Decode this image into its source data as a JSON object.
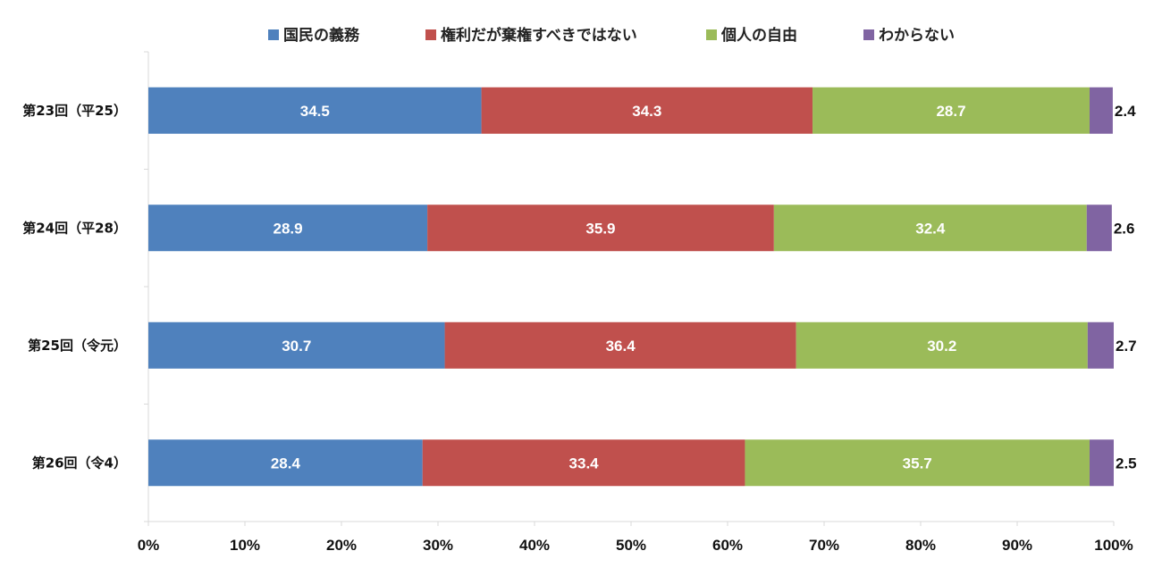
{
  "chart_data": {
    "type": "bar",
    "orientation": "horizontal",
    "stacked": true,
    "percent": true,
    "title": "",
    "xlabel": "",
    "ylabel": "",
    "xlim": [
      0,
      100
    ],
    "x_ticks": [
      "0%",
      "10%",
      "20%",
      "30%",
      "40%",
      "50%",
      "60%",
      "70%",
      "80%",
      "90%",
      "100%"
    ],
    "legend_position": "top",
    "grid": false,
    "categories": [
      "第23回（平25）",
      "第24回（平28）",
      "第25回（令元）",
      "第26回（令4）"
    ],
    "series": [
      {
        "name": "国民の義務",
        "color": "#4f81bd",
        "values": [
          34.5,
          28.9,
          30.7,
          28.4
        ]
      },
      {
        "name": "権利だが棄権すべきではない",
        "color": "#c0504d",
        "values": [
          34.3,
          35.9,
          36.4,
          33.4
        ]
      },
      {
        "name": "個人の自由",
        "color": "#9bbb59",
        "values": [
          28.7,
          32.4,
          30.2,
          35.7
        ]
      },
      {
        "name": "わからない",
        "color": "#8064a2",
        "values": [
          2.4,
          2.6,
          2.7,
          2.5
        ]
      }
    ]
  }
}
